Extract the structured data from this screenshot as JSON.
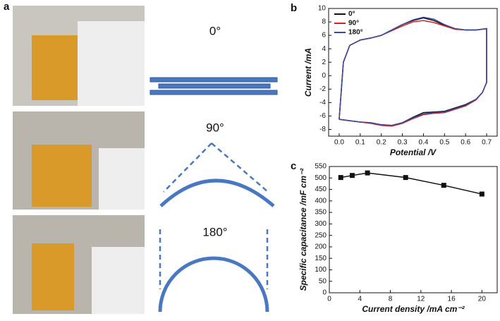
{
  "figure": {
    "panel_labels": [
      "a",
      "b",
      "c"
    ],
    "bend_angles": [
      "0°",
      "90°",
      "180°"
    ]
  },
  "chart_data": [
    {
      "type": "line",
      "xlabel": "Potential /V",
      "ylabel": "Current /mA",
      "x": [
        0,
        0.02,
        0.05,
        0.1,
        0.15,
        0.2,
        0.25,
        0.3,
        0.35,
        0.4,
        0.45,
        0.5,
        0.55,
        0.6,
        0.65,
        0.7,
        0.7,
        0.68,
        0.65,
        0.6,
        0.55,
        0.5,
        0.45,
        0.4,
        0.35,
        0.3,
        0.25,
        0.2,
        0.15,
        0.1,
        0.05,
        0
      ],
      "series": [
        {
          "name": "0°",
          "color": "#111111",
          "values": [
            -6.5,
            2.0,
            4.5,
            5.3,
            5.6,
            6.0,
            6.8,
            7.6,
            8.2,
            8.6,
            8.2,
            7.5,
            7.0,
            6.8,
            6.8,
            7.0,
            -1.0,
            -2.5,
            -3.5,
            -4.3,
            -4.8,
            -5.3,
            -5.4,
            -5.5,
            -6.2,
            -7.0,
            -7.4,
            -7.3,
            -7.0,
            -6.9,
            -6.7,
            -6.5
          ]
        },
        {
          "name": "90°",
          "color": "#d62020",
          "values": [
            -6.5,
            2.0,
            4.5,
            5.3,
            5.6,
            6.0,
            6.7,
            7.4,
            8.0,
            8.2,
            7.9,
            7.4,
            6.9,
            6.8,
            6.8,
            7.0,
            -1.0,
            -2.5,
            -3.6,
            -4.5,
            -5.0,
            -5.5,
            -5.6,
            -5.8,
            -6.4,
            -7.1,
            -7.5,
            -7.4,
            -7.1,
            -6.9,
            -6.7,
            -6.5
          ]
        },
        {
          "name": "180°",
          "color": "#3a4a9a",
          "values": [
            -6.5,
            2.0,
            4.5,
            5.3,
            5.6,
            6.0,
            6.8,
            7.6,
            8.3,
            8.7,
            8.4,
            7.6,
            7.0,
            6.8,
            6.8,
            7.0,
            -1.0,
            -2.5,
            -3.5,
            -4.4,
            -4.9,
            -5.4,
            -5.5,
            -5.7,
            -6.3,
            -7.0,
            -7.4,
            -7.3,
            -7.0,
            -6.9,
            -6.7,
            -6.5
          ]
        }
      ],
      "xlim": [
        -0.05,
        0.75
      ],
      "xticks": [
        {
          "value": 0,
          "label": "0.0"
        },
        0.1,
        0.2,
        0.3,
        0.4,
        0.5,
        0.6,
        0.7
      ],
      "ylim": [
        -9,
        10
      ],
      "yticks": [
        -8,
        -6,
        -4,
        -2,
        0,
        2,
        4,
        6,
        8,
        10
      ]
    },
    {
      "type": "line",
      "xlabel": "Current density /mA cm⁻²",
      "ylabel": "Specific capacitance /mF cm⁻²",
      "x": [
        1.5,
        3,
        5,
        10,
        15,
        20
      ],
      "series": [
        {
          "color": "#111111",
          "values": [
            502,
            511,
            522,
            502,
            468,
            430
          ]
        }
      ],
      "xlim": [
        0,
        22
      ],
      "xticks": [
        0,
        4,
        8,
        12,
        16,
        20
      ],
      "ylim": [
        0,
        550
      ],
      "yticks": [
        0,
        50,
        100,
        150,
        200,
        250,
        300,
        350,
        400,
        450,
        500,
        550
      ]
    }
  ]
}
